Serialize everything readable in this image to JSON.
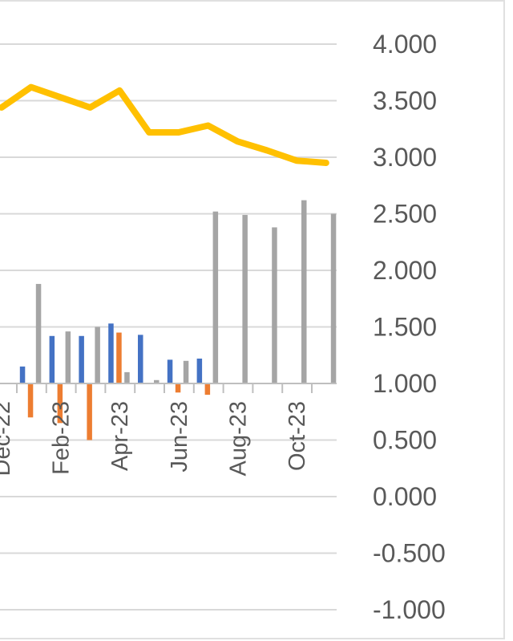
{
  "chart_data": {
    "type": "bar",
    "title": "",
    "xlabel": "",
    "ylabel": "",
    "ylim": [
      -1.0,
      4.0
    ],
    "grid": true,
    "y_ticks": [
      "4.000",
      "3.500",
      "3.000",
      "2.500",
      "2.000",
      "1.500",
      "1.000",
      "0.500",
      "0.000",
      "-0.500",
      "-1.000"
    ],
    "x_tick_labels": [
      "Dec-22",
      "Feb-23",
      "Apr-23",
      "Jun-23",
      "Aug-23",
      "Oct-23"
    ],
    "periods": [
      "Dec-22",
      "Jan-23",
      "Feb-23",
      "Mar-23",
      "Apr-23",
      "May-23",
      "Jun-23",
      "Jul-23",
      "Aug-23",
      "Sep-23",
      "Oct-23",
      "Nov-23"
    ],
    "series": [
      {
        "color": "#4472c4",
        "kind": "bar",
        "values": [
          null,
          0.15,
          0.42,
          0.42,
          0.53,
          0.43,
          0.21,
          0.22,
          null,
          null,
          null,
          null
        ]
      },
      {
        "color": "#ed7d31",
        "kind": "bar",
        "values": [
          null,
          -0.3,
          -0.35,
          -0.5,
          0.45,
          null,
          -0.08,
          -0.1,
          null,
          null,
          null,
          null
        ]
      },
      {
        "color": "#a5a5a5",
        "kind": "bar",
        "values": [
          null,
          0.88,
          0.46,
          0.5,
          0.1,
          0.03,
          0.2,
          1.52,
          1.49,
          1.38,
          1.62,
          1.5
        ]
      },
      {
        "color": "#ffc000",
        "kind": "line",
        "values": [
          3.44,
          3.62,
          3.53,
          3.44,
          3.59,
          3.22,
          3.22,
          3.28,
          3.14,
          3.06,
          2.97,
          2.95
        ]
      }
    ]
  }
}
